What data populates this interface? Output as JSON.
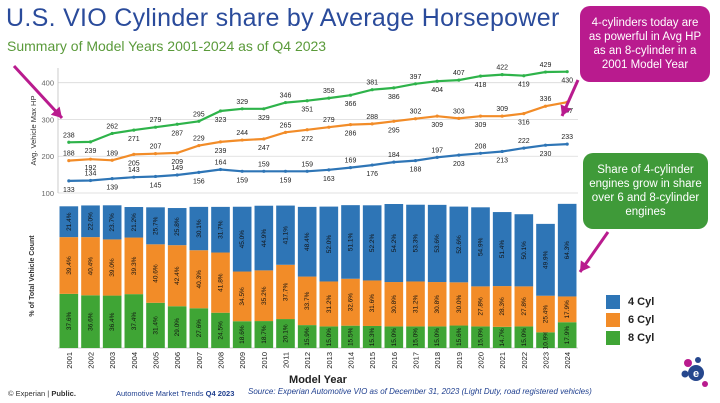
{
  "header": {
    "title": "U.S. VIO Cylinder share by Average Horsepower",
    "subtitle": "Summary of Model Years 2001-2024 as of Q4 2023"
  },
  "callouts": {
    "hp": "4-cylinders today are as powerful in Avg HP as an 8-cylinder in a 2001 Model Year",
    "share": "Share of 4-cylinder engines grow in share over 6 and 8-cylinder engines"
  },
  "footer": {
    "brand": "© Experian | ",
    "brand_bold": "Public.",
    "report": "Automotive Market Trends ",
    "report_bold": "Q4 2023",
    "source": "Source: Experian Automotive VIO as of December 31, 2023  (Light Duty, road registered vehicles)"
  },
  "colors": {
    "cyl4": "#2e75b6",
    "cyl6": "#f28c28",
    "cyl8": "#3fa535",
    "hp_line_8cyl": "#2eb34a",
    "hp_line_6cyl": "#f28c28",
    "hp_line_4cyl": "#2e75b6",
    "magenta": "#b91b8e",
    "title_blue": "#2a4b9b"
  },
  "chart_data": [
    {
      "type": "line",
      "ylabel": "Avg. Vehicle Max HP",
      "ylim": [
        100,
        440
      ],
      "yticks": [
        100,
        200,
        300,
        400
      ],
      "grid": true,
      "x": [
        "2001",
        "2002",
        "2003",
        "2004",
        "2005",
        "2006",
        "2007",
        "2008",
        "2009",
        "2010",
        "2011",
        "2012",
        "2013",
        "2014",
        "2015",
        "2016",
        "2017",
        "2018",
        "2019",
        "2020",
        "2021",
        "2022",
        "2023",
        "2024"
      ],
      "series": [
        {
          "key": "cyl8",
          "values": [
            238,
            239,
            262,
            271,
            279,
            287,
            295,
            323,
            329,
            329,
            346,
            351,
            358,
            366,
            381,
            386,
            397,
            404,
            407,
            418,
            422,
            419,
            429,
            430
          ]
        },
        {
          "key": "cyl6",
          "values": [
            188,
            192,
            189,
            205,
            207,
            209,
            229,
            239,
            244,
            247,
            265,
            272,
            279,
            286,
            288,
            295,
            302,
            309,
            303,
            309,
            309,
            316,
            336,
            347
          ]
        },
        {
          "key": "cyl4",
          "values": [
            133,
            134,
            139,
            143,
            145,
            149,
            156,
            164,
            159,
            159,
            159,
            159,
            163,
            169,
            176,
            184,
            188,
            197,
            203,
            208,
            213,
            222,
            230,
            233
          ]
        }
      ]
    },
    {
      "type": "bar",
      "stacked": true,
      "ylabel": "% of Total Vehicle Count",
      "xlabel": "Model Year",
      "categories": [
        "2001",
        "2002",
        "2003",
        "2004",
        "2005",
        "2006",
        "2007",
        "2008",
        "2009",
        "2010",
        "2011",
        "2012",
        "2013",
        "2014",
        "2015",
        "2016",
        "2017",
        "2018",
        "2019",
        "2020",
        "2021",
        "2022",
        "2023",
        "2024"
      ],
      "legend_position": "right",
      "series": [
        {
          "name": "8 Cyl",
          "key": "cyl8",
          "labels": [
            "37.6%",
            "36.6%",
            "36.4%",
            "37.4%",
            "31.4%",
            "29.0%",
            "27.6%",
            "24.5%",
            "18.6%",
            "18.7%",
            "20.1%",
            "15.9%",
            "15.0%",
            "15.5%",
            "15.3%",
            "15.0%",
            "15.0%",
            "15.0%",
            "15.6%",
            "15.0%",
            "14.7%",
            "15.0%",
            "10.9%",
            "17.9%"
          ],
          "values": [
            37.6,
            36.6,
            36.4,
            37.4,
            31.4,
            29.0,
            27.6,
            24.5,
            18.6,
            18.7,
            20.1,
            15.9,
            15.0,
            15.5,
            15.3,
            15.0,
            15.0,
            15.0,
            15.6,
            15.0,
            14.7,
            15.0,
            10.9,
            17.9
          ]
        },
        {
          "name": "6 Cyl",
          "key": "cyl6",
          "labels": [
            "39.4%",
            "40.4%",
            "39.0%",
            "39.3%",
            "40.6%",
            "42.4%",
            "40.3%",
            "41.8%",
            "34.5%",
            "35.2%",
            "37.7%",
            "33.7%",
            "31.2%",
            "32.6%",
            "31.6%",
            "30.8%",
            "31.2%",
            "30.8%",
            "30.0%",
            "27.8%",
            "28.3%",
            "27.8%",
            "25.4%",
            "17.9%"
          ],
          "values": [
            39.4,
            40.4,
            39.0,
            39.3,
            40.6,
            42.4,
            40.3,
            41.8,
            34.5,
            35.2,
            37.7,
            33.7,
            31.2,
            32.6,
            31.6,
            30.8,
            31.2,
            30.8,
            30.0,
            27.8,
            28.3,
            27.8,
            25.4,
            17.9
          ]
        },
        {
          "name": "4 Cyl",
          "key": "cyl4",
          "labels": [
            "21.4%",
            "22.0%",
            "23.7%",
            "21.2%",
            "25.7%",
            "25.8%",
            "30.1%",
            "31.7%",
            "45.0%",
            "44.9%",
            "41.1%",
            "48.4%",
            "52.0%",
            "51.1%",
            "52.2%",
            "54.2%",
            "53.3%",
            "53.6%",
            "52.6%",
            "54.9%",
            "51.4%",
            "50.1%",
            "49.9%",
            "64.3%"
          ],
          "values": [
            21.4,
            22.0,
            23.7,
            21.2,
            25.7,
            25.8,
            30.1,
            31.7,
            45.0,
            44.9,
            41.1,
            48.4,
            52.0,
            51.1,
            52.2,
            54.2,
            53.3,
            53.6,
            52.6,
            54.9,
            51.4,
            50.1,
            49.9,
            64.3
          ]
        }
      ]
    }
  ]
}
